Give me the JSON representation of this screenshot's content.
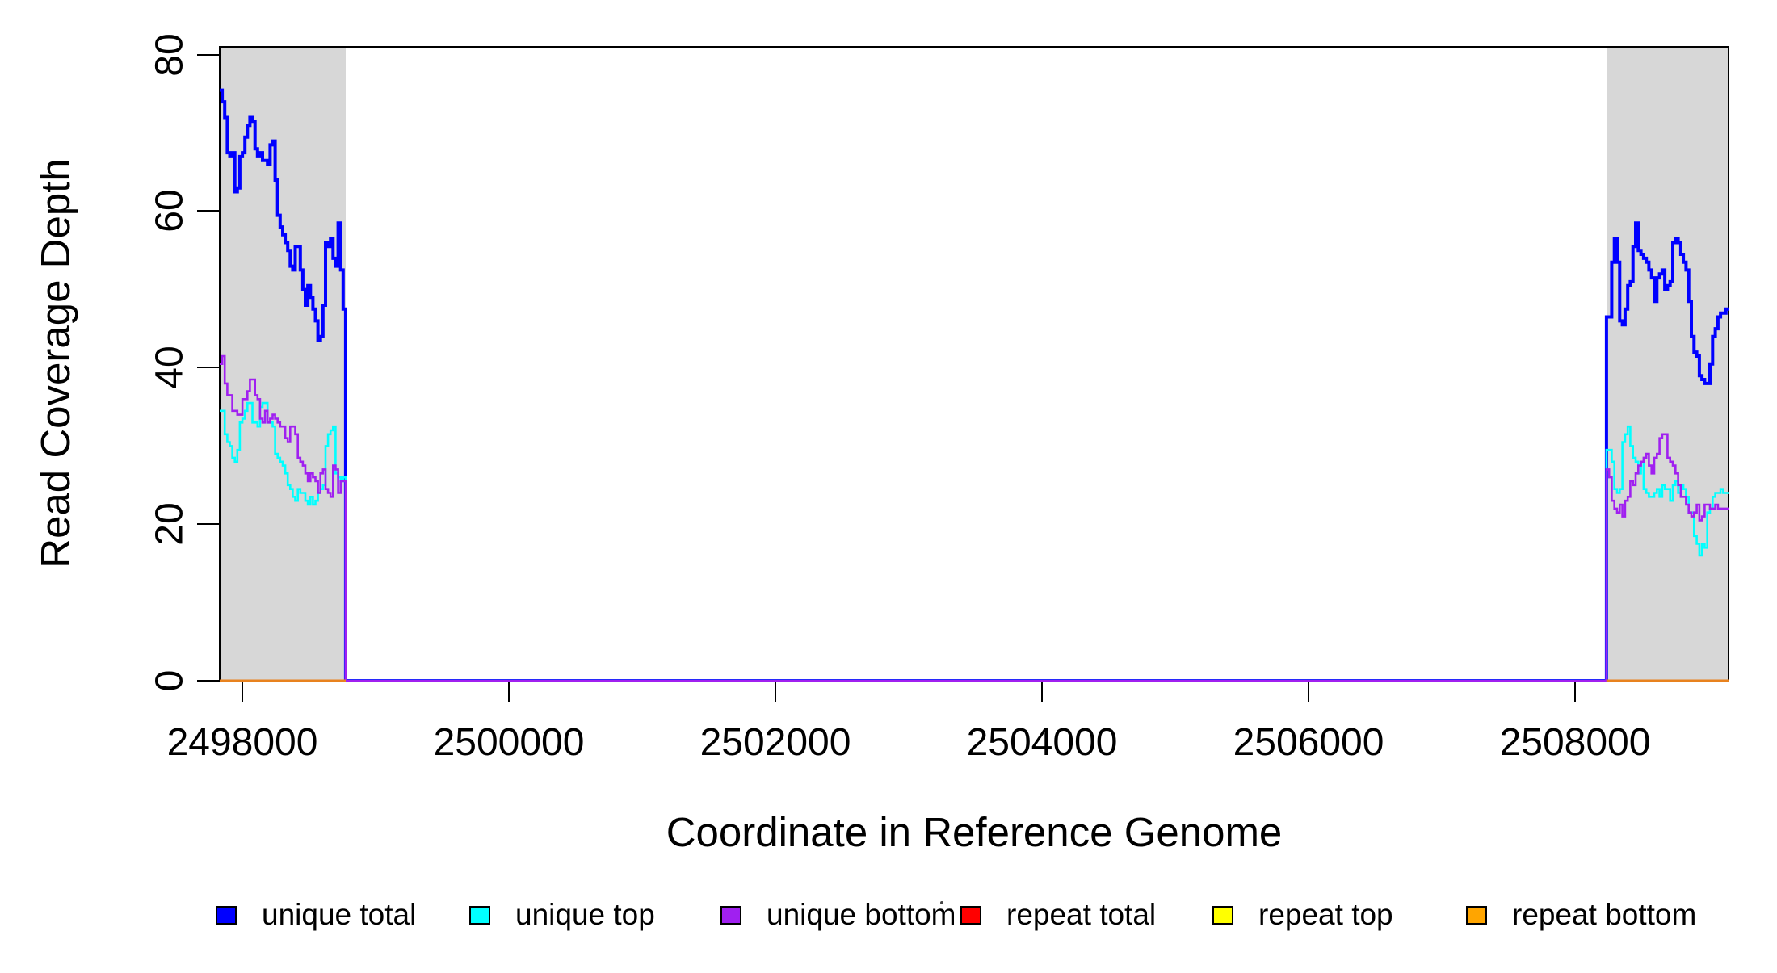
{
  "figure": {
    "background": "#FFFFFF",
    "stray_dot_color": "#444444"
  },
  "chart_data": {
    "type": "line",
    "subtype": "step-coverage",
    "title": "",
    "xlabel": "Coordinate in Reference Genome",
    "ylabel": "Read Coverage Depth",
    "xlim": [
      2497830,
      2509152
    ],
    "ylim": [
      0,
      80
    ],
    "grid": false,
    "legend_position": "bottom",
    "x_ticks": {
      "values": [
        2498000,
        2500000,
        2502000,
        2504000,
        2506000,
        2508000
      ],
      "labels": [
        "2498000",
        "2500000",
        "2502000",
        "2504000",
        "2506000",
        "2508000"
      ]
    },
    "y_ticks": {
      "values": [
        0,
        20,
        40,
        60,
        80
      ],
      "labels": [
        "0",
        "20",
        "40",
        "60",
        "80"
      ]
    },
    "highlight_regions": [
      {
        "name": "repeat-region-left",
        "x_start": 2497830,
        "x_end": 2498775,
        "color": "#D7D7D7"
      },
      {
        "name": "repeat-region-right",
        "x_start": 2508236,
        "x_end": 2509152,
        "color": "#D7D7D7"
      }
    ],
    "legend": [
      {
        "label": "unique total",
        "color": "#0000FF"
      },
      {
        "label": "unique top",
        "color": "#00FFFF"
      },
      {
        "label": "unique bottom",
        "color": "#A020F0"
      },
      {
        "label": "repeat total",
        "color": "#FF0000"
      },
      {
        "label": "repeat top",
        "color": "#FFFF00"
      },
      {
        "label": "repeat bottom",
        "color": "#FFA500"
      }
    ],
    "series": [
      {
        "name": "unique total",
        "color": "#0000FF",
        "stroke_width": 4,
        "continuous": true,
        "segments": [
          {
            "x_start": 2497830,
            "x_end": 2498775,
            "values": [
              75.5,
              74,
              72,
              67.5,
              67,
              67.5,
              62.5,
              63,
              67,
              67.5,
              69.5,
              71,
              72,
              71.5,
              68,
              67,
              67.5,
              66.5,
              66.5,
              66,
              68.5,
              69,
              64,
              59.5,
              58,
              57,
              56,
              55,
              53,
              52.5,
              55.5,
              55.5,
              52.5,
              50,
              48,
              50.5,
              49,
              47.5,
              46,
              43.5,
              44,
              48,
              56,
              55.5,
              56.5,
              54,
              53,
              58.5,
              52.5,
              47.5
            ]
          },
          {
            "x_start": 2498775,
            "x_end": 2508236,
            "values": [
              0
            ]
          },
          {
            "x_start": 2508236,
            "x_end": 2509152,
            "values": [
              46.5,
              46.5,
              53.5,
              56.5,
              53.5,
              46,
              45.5,
              47.5,
              50.5,
              51,
              55.5,
              58.5,
              55,
              54.5,
              54,
              53.5,
              52.5,
              51.5,
              48.5,
              51.5,
              52,
              52.5,
              50,
              50.5,
              51,
              56,
              56.5,
              56,
              54.5,
              53.5,
              52.5,
              48.5,
              44,
              42,
              41.5,
              39,
              38.5,
              38,
              38,
              40.5,
              44,
              45,
              46.5,
              47,
              47,
              47.5
            ]
          }
        ]
      },
      {
        "name": "unique top",
        "color": "#00FFFF",
        "stroke_width": 2.6,
        "continuous": true,
        "segments": [
          {
            "x_start": 2497830,
            "x_end": 2498775,
            "values": [
              34.5,
              34.5,
              31.5,
              30.5,
              30,
              28.5,
              28,
              29.5,
              33,
              33.5,
              34.5,
              35.5,
              35.5,
              33,
              33,
              32.5,
              35,
              35.5,
              35.5,
              33,
              33,
              32.5,
              29,
              28.5,
              28,
              27.5,
              26.5,
              25,
              24.5,
              23.5,
              23,
              24.5,
              24,
              24,
              23,
              22.5,
              23.5,
              22.5,
              23,
              24,
              24.5,
              25,
              30,
              31.5,
              32,
              32.5,
              26.5,
              26,
              25.5,
              26
            ]
          },
          {
            "x_start": 2498775,
            "x_end": 2508236,
            "values": [
              0
            ]
          },
          {
            "x_start": 2508236,
            "x_end": 2509152,
            "values": [
              29.5,
              29.5,
              28,
              24.5,
              24,
              24.5,
              30.5,
              31.5,
              32.5,
              30,
              28.5,
              28,
              26.5,
              28,
              24.5,
              24,
              23.5,
              23.5,
              24,
              24.5,
              23.5,
              25,
              24.5,
              24.5,
              23,
              25,
              25.5,
              24,
              25,
              24.5,
              23.5,
              21.5,
              21.5,
              18.5,
              17.5,
              16,
              17.5,
              17,
              21.5,
              22,
              23.5,
              24,
              24,
              24.5,
              24,
              24
            ]
          }
        ]
      },
      {
        "name": "unique bottom",
        "color": "#A020F0",
        "stroke_width": 2.6,
        "continuous": true,
        "segments": [
          {
            "x_start": 2497830,
            "x_end": 2498775,
            "values": [
              40.5,
              41.5,
              38,
              36.5,
              36.5,
              34.5,
              34.5,
              34,
              34,
              36,
              36,
              37,
              38.5,
              38.5,
              36.5,
              36,
              33.5,
              33,
              34.5,
              33,
              33.5,
              34,
              33.5,
              33,
              32.5,
              32.5,
              31,
              30.5,
              32.5,
              32.5,
              31.5,
              28.5,
              28,
              27.5,
              26.5,
              25.5,
              26.5,
              26,
              25.5,
              24,
              26.5,
              27,
              24.5,
              24,
              23.5,
              27.5,
              27,
              24,
              25.5,
              25.5
            ]
          },
          {
            "x_start": 2498775,
            "x_end": 2508236,
            "values": [
              0
            ]
          },
          {
            "x_start": 2508236,
            "x_end": 2509152,
            "values": [
              27,
              26,
              23,
              22,
              21.5,
              22.5,
              21,
              23,
              23.5,
              25.5,
              25,
              26.5,
              27.5,
              28,
              28.5,
              29,
              27.5,
              26.5,
              28.5,
              29,
              31,
              31.5,
              31.5,
              28.5,
              28,
              27.5,
              26.5,
              25,
              23.5,
              23.5,
              22.5,
              21.5,
              21,
              21.5,
              22.5,
              20.5,
              21,
              22.5,
              22.5,
              22,
              22,
              22.5,
              22,
              22,
              22,
              22
            ]
          }
        ]
      },
      {
        "name": "repeat total",
        "color": "#FF0000",
        "stroke_width": 3,
        "continuous": false,
        "segments": [
          {
            "x_start": 2497830,
            "x_end": 2498775,
            "values": [
              0
            ]
          },
          {
            "x_start": 2508236,
            "x_end": 2509152,
            "values": [
              0
            ]
          }
        ]
      },
      {
        "name": "repeat top",
        "color": "#FFFF00",
        "stroke_width": 3,
        "continuous": false,
        "segments": [
          {
            "x_start": 2497830,
            "x_end": 2498775,
            "values": [
              0
            ]
          },
          {
            "x_start": 2508236,
            "x_end": 2509152,
            "values": [
              0
            ]
          }
        ]
      },
      {
        "name": "repeat bottom",
        "color": "#E8821E",
        "stroke_width": 3,
        "continuous": false,
        "segments": [
          {
            "x_start": 2497830,
            "x_end": 2498775,
            "values": [
              0
            ]
          },
          {
            "x_start": 2508236,
            "x_end": 2509152,
            "values": [
              0
            ]
          }
        ]
      }
    ]
  }
}
